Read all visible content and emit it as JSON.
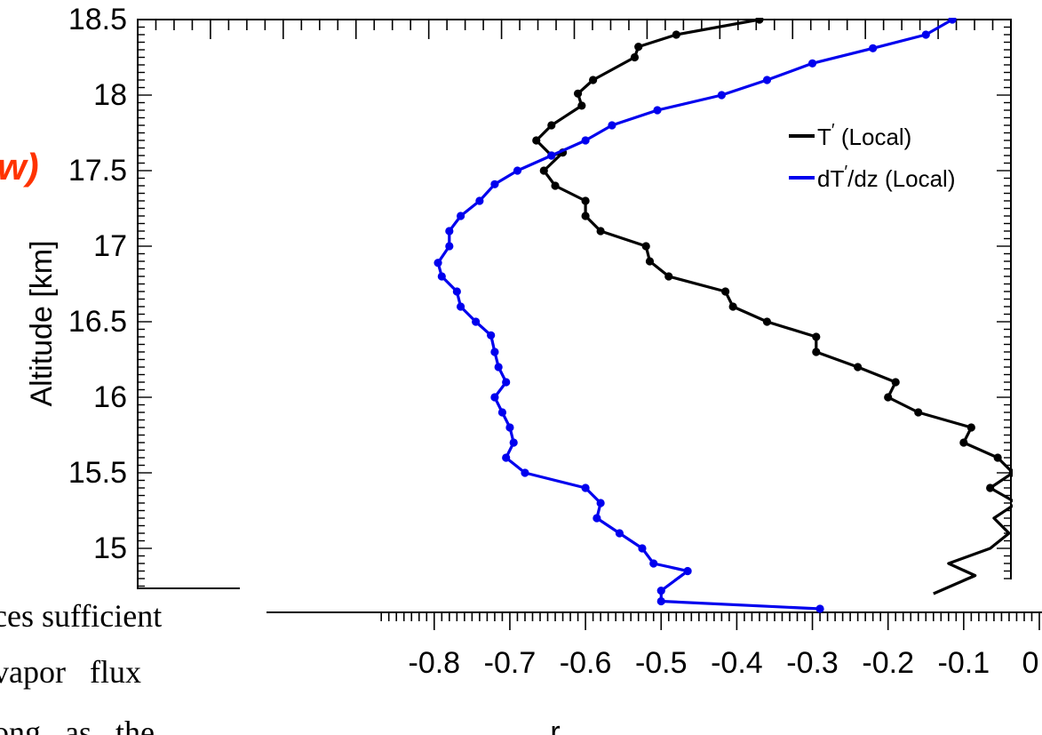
{
  "fragments": {
    "red_label": "w)",
    "body_line_1": "ces sufficient",
    "body_line_2": "vapor   flux",
    "body_line_3": "ong   as   the",
    "red_color": "#ff3300"
  },
  "chart_data": {
    "type": "line",
    "xlabel": "r",
    "ylabel": "Altitude [km]",
    "xlim": [
      -0.87,
      0.0
    ],
    "ylim": [
      14.75,
      18.5
    ],
    "xticks": [
      -0.8,
      -0.7,
      -0.6,
      -0.5,
      -0.4,
      -0.3,
      -0.2,
      -0.1,
      0
    ],
    "xtick_labels": [
      "-0.8",
      "-0.7",
      "-0.6",
      "-0.5",
      "-0.4",
      "-0.3",
      "-0.2",
      "-0.1",
      "0"
    ],
    "yticks": [
      15,
      15.5,
      16,
      16.5,
      17,
      17.5,
      18,
      18.5
    ],
    "ytick_labels": [
      "15",
      "15.5",
      "16",
      "16.5",
      "17",
      "17.5",
      "18",
      "18.5"
    ],
    "grid": false,
    "legend_position": "top-right",
    "series": [
      {
        "name": "T′ (Local)",
        "name_base": "T",
        "name_sup": "′",
        "name_rest": " (Local)",
        "color": "#000000",
        "points": [
          [
            -0.37,
            18.5
          ],
          [
            -0.48,
            18.4
          ],
          [
            -0.53,
            18.32
          ],
          [
            -0.535,
            18.25
          ],
          [
            -0.59,
            18.1
          ],
          [
            -0.61,
            18.01
          ],
          [
            -0.605,
            17.93
          ],
          [
            -0.645,
            17.8
          ],
          [
            -0.665,
            17.7
          ],
          [
            -0.645,
            17.6
          ],
          [
            -0.63,
            17.62
          ],
          [
            -0.655,
            17.5
          ],
          [
            -0.64,
            17.4
          ],
          [
            -0.6,
            17.3
          ],
          [
            -0.6,
            17.2
          ],
          [
            -0.58,
            17.1
          ],
          [
            -0.52,
            17.0
          ],
          [
            -0.515,
            16.9
          ],
          [
            -0.49,
            16.8
          ],
          [
            -0.415,
            16.7
          ],
          [
            -0.405,
            16.6
          ],
          [
            -0.36,
            16.5
          ],
          [
            -0.295,
            16.4
          ],
          [
            -0.295,
            16.3
          ],
          [
            -0.24,
            16.2
          ],
          [
            -0.19,
            16.1
          ],
          [
            -0.2,
            16.0
          ],
          [
            -0.16,
            15.9
          ],
          [
            -0.09,
            15.8
          ],
          [
            -0.1,
            15.7
          ],
          [
            -0.055,
            15.6
          ],
          [
            -0.035,
            15.5
          ],
          [
            -0.065,
            15.4
          ],
          [
            -0.03,
            15.3
          ],
          [
            -0.06,
            15.2
          ],
          [
            -0.04,
            15.1
          ],
          [
            -0.065,
            15.0
          ],
          [
            -0.12,
            14.9
          ],
          [
            -0.085,
            14.82
          ],
          [
            -0.14,
            14.7
          ]
        ]
      },
      {
        "name": "dT′/dz (Local)",
        "name_base": "dT",
        "name_sup": "′",
        "name_rest": "/dz (Local)",
        "color": "#0000ee",
        "points": [
          [
            -0.115,
            18.5
          ],
          [
            -0.15,
            18.4
          ],
          [
            -0.22,
            18.31
          ],
          [
            -0.3,
            18.21
          ],
          [
            -0.36,
            18.1
          ],
          [
            -0.42,
            18.0
          ],
          [
            -0.505,
            17.9
          ],
          [
            -0.565,
            17.8
          ],
          [
            -0.6,
            17.7
          ],
          [
            -0.645,
            17.6
          ],
          [
            -0.69,
            17.5
          ],
          [
            -0.72,
            17.41
          ],
          [
            -0.74,
            17.3
          ],
          [
            -0.765,
            17.2
          ],
          [
            -0.78,
            17.1
          ],
          [
            -0.78,
            17.0
          ],
          [
            -0.795,
            16.89
          ],
          [
            -0.79,
            16.8
          ],
          [
            -0.77,
            16.7
          ],
          [
            -0.765,
            16.6
          ],
          [
            -0.745,
            16.5
          ],
          [
            -0.725,
            16.41
          ],
          [
            -0.72,
            16.3
          ],
          [
            -0.715,
            16.2
          ],
          [
            -0.705,
            16.1
          ],
          [
            -0.72,
            16.0
          ],
          [
            -0.71,
            15.9
          ],
          [
            -0.7,
            15.8
          ],
          [
            -0.695,
            15.7
          ],
          [
            -0.705,
            15.6
          ],
          [
            -0.68,
            15.5
          ],
          [
            -0.6,
            15.4
          ],
          [
            -0.58,
            15.3
          ],
          [
            -0.585,
            15.2
          ],
          [
            -0.555,
            15.1
          ],
          [
            -0.525,
            15.0
          ],
          [
            -0.51,
            14.9
          ],
          [
            -0.465,
            14.85
          ],
          [
            -0.5,
            14.72
          ],
          [
            -0.5,
            14.65
          ],
          [
            -0.29,
            14.6
          ]
        ]
      }
    ]
  }
}
